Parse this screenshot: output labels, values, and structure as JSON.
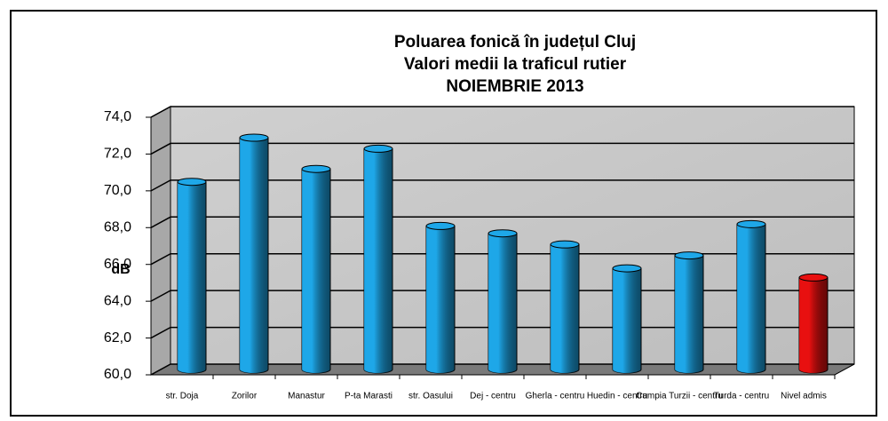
{
  "chart_data": {
    "type": "bar",
    "title": [
      "Poluarea fonică în județul Cluj",
      "Valori medii la traficul rutier",
      "NOIEMBRIE 2013"
    ],
    "y_label": "dB",
    "categories": [
      "str. Doja",
      "Zorilor",
      "Manastur",
      "P-ta Marasti",
      "str. Oasului",
      "Dej - centru",
      "Gherla - centru",
      "Huedin - centru",
      "Campia Turzii - centru",
      "Turda - centru",
      "Nivel admis"
    ],
    "values": [
      70.2,
      72.6,
      70.9,
      72.0,
      67.8,
      67.4,
      66.8,
      65.5,
      66.2,
      67.9,
      65.0
    ],
    "colors": [
      "#1ea7e8",
      "#1ea7e8",
      "#1ea7e8",
      "#1ea7e8",
      "#1ea7e8",
      "#1ea7e8",
      "#1ea7e8",
      "#1ea7e8",
      "#1ea7e8",
      "#1ea7e8",
      "#e81010"
    ],
    "ylim": [
      60,
      74
    ],
    "yticks": [
      {
        "value": 60,
        "label": "60,0"
      },
      {
        "value": 62,
        "label": "62,0"
      },
      {
        "value": 64,
        "label": "64,0"
      },
      {
        "value": 66,
        "label": "66,0"
      },
      {
        "value": 68,
        "label": "68,0"
      },
      {
        "value": 70,
        "label": "70,0"
      },
      {
        "value": 72,
        "label": "72,0"
      },
      {
        "value": 74,
        "label": "74,0"
      }
    ],
    "grid": true
  }
}
